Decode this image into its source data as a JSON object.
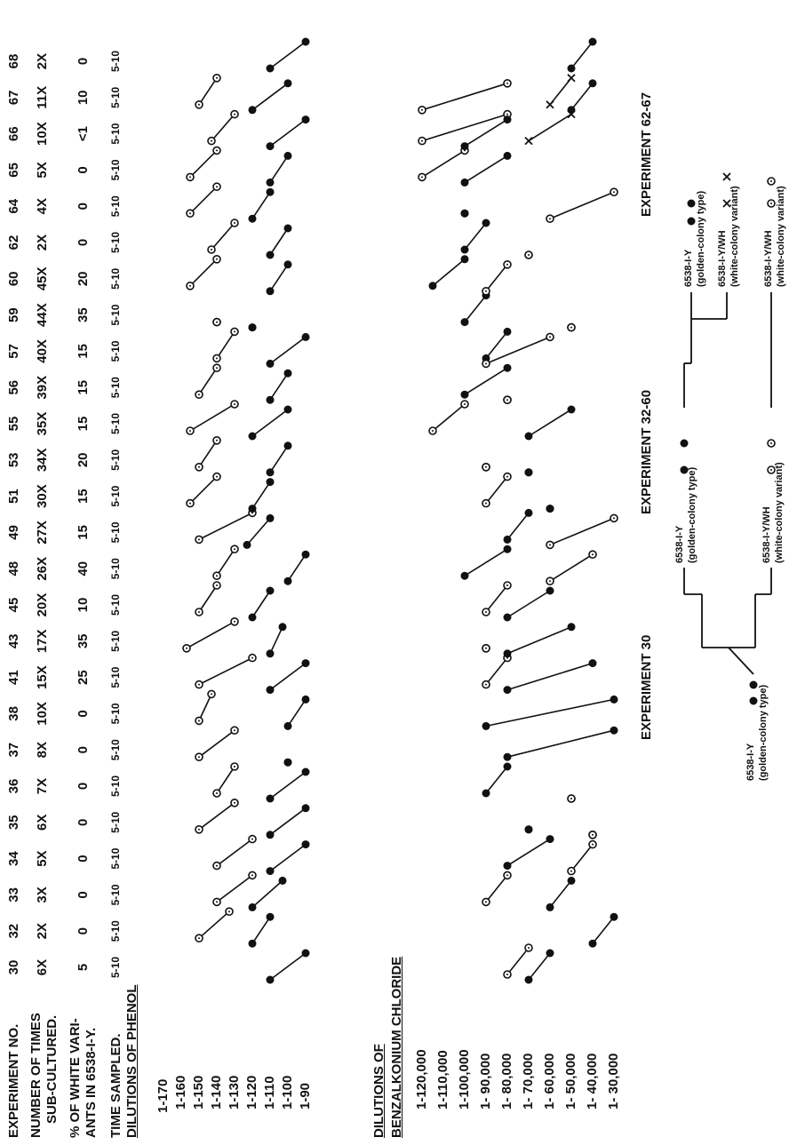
{
  "chart_data": {
    "type": "line",
    "header_labels": {
      "experiment": "EXPERIMENT NO.",
      "subcultured_1": "NUMBER OF TIMES",
      "subcultured_2": "SUB-CULTURED.",
      "variants_1": "% OF WHITE VARI-",
      "variants_2": "ANTS IN 6538-I-Y.",
      "time": "TIME SAMPLED.",
      "phenol": "DILUTIONS OF PHENOL",
      "bc_1": "DILUTIONS OF",
      "bc_2": "BENZALKONIUM CHLORIDE"
    },
    "experiments": [
      "30",
      "32",
      "33",
      "34",
      "35",
      "36",
      "37",
      "38",
      "41",
      "43",
      "45",
      "48",
      "49",
      "51",
      "53",
      "55",
      "56",
      "57",
      "59",
      "60",
      "62",
      "64",
      "65",
      "66",
      "67",
      "68"
    ],
    "times_subcultured": [
      "6X",
      "2X",
      "3X",
      "5X",
      "6X",
      "7X",
      "8X",
      "10X",
      "15X",
      "17X",
      "20X",
      "26X",
      "27X",
      "30X",
      "34X",
      "35X",
      "39X",
      "40X",
      "44X",
      "45X",
      "2X",
      "4X",
      "5X",
      "10X",
      "11X",
      "2X"
    ],
    "pct_white_variants": [
      "5",
      "0",
      "0",
      "0",
      "0",
      "0",
      "0",
      "0",
      "25",
      "35",
      "10",
      "40",
      "15",
      "15",
      "20",
      "15",
      "15",
      "15",
      "35",
      "20",
      "0",
      "0",
      "0",
      "<1",
      "10",
      "0"
    ],
    "time_sampled": [
      "5-10",
      "5-10",
      "5-10",
      "5-10",
      "5-10",
      "5-10",
      "5-10",
      "5-10",
      "5-10",
      "5-10",
      "5-10",
      "5-10",
      "5-10",
      "5-10",
      "5-10",
      "5-10",
      "5-10",
      "5-10",
      "5-10",
      "5-10",
      "5-10",
      "5-10",
      "5-10",
      "5-10",
      "5-10",
      "5-10"
    ],
    "phenol_ticks": [
      "1-170",
      "1-160",
      "1-150",
      "1-140",
      "1-130",
      "1-120",
      "1-110",
      "1-100",
      "1-90"
    ],
    "bc_ticks": [
      "1-120,000",
      "1-110,000",
      "1-100,000",
      "1- 90,000",
      "1- 80,000",
      "1- 70,000",
      "1- 60,000",
      "1- 50,000",
      "1- 40,000",
      "1- 30,000"
    ],
    "phenol_segments": [
      {
        "exp": "30",
        "f": "filled",
        "a": 110,
        "b": 90
      },
      {
        "exp": "32",
        "f": "open",
        "a": 150,
        "b": 133
      },
      {
        "exp": "32",
        "f": "filled",
        "a": 120,
        "b": 110
      },
      {
        "exp": "33",
        "f": "open",
        "a": 140,
        "b": 120
      },
      {
        "exp": "33",
        "f": "filled",
        "a": 120,
        "b": 103
      },
      {
        "exp": "34",
        "f": "open",
        "a": 140,
        "b": 120
      },
      {
        "exp": "34",
        "f": "filled",
        "a": 110,
        "b": 90
      },
      {
        "exp": "35",
        "f": "open",
        "a": 150,
        "b": 130
      },
      {
        "exp": "35",
        "f": "filled",
        "a": 110,
        "b": 90
      },
      {
        "exp": "36",
        "f": "open",
        "a": 140,
        "b": 130
      },
      {
        "exp": "36",
        "f": "filled",
        "a": 110,
        "b": 90
      },
      {
        "exp": "37",
        "f": "open",
        "a": 150,
        "b": 130
      },
      {
        "exp": "37",
        "f": "filled",
        "a": 100,
        "b": 100
      },
      {
        "exp": "38",
        "f": "open",
        "a": 150,
        "b": 143
      },
      {
        "exp": "38",
        "f": "filled",
        "a": 100,
        "b": 90
      },
      {
        "exp": "41",
        "f": "open",
        "a": 150,
        "b": 120
      },
      {
        "exp": "41",
        "f": "filled",
        "a": 110,
        "b": 90
      },
      {
        "exp": "43",
        "f": "open",
        "a": 157,
        "b": 130
      },
      {
        "exp": "43",
        "f": "filled",
        "a": 110,
        "b": 103
      },
      {
        "exp": "45",
        "f": "open",
        "a": 150,
        "b": 140
      },
      {
        "exp": "45",
        "f": "filled",
        "a": 120,
        "b": 110
      },
      {
        "exp": "48",
        "f": "open",
        "a": 140,
        "b": 130
      },
      {
        "exp": "48",
        "f": "filled",
        "a": 100,
        "b": 90
      },
      {
        "exp": "49",
        "f": "open",
        "a": 150,
        "b": 120
      },
      {
        "exp": "49",
        "f": "filled",
        "a": 123,
        "b": 110
      },
      {
        "exp": "51",
        "f": "open",
        "a": 155,
        "b": 140
      },
      {
        "exp": "51",
        "f": "filled",
        "a": 120,
        "b": 110
      },
      {
        "exp": "53",
        "f": "open",
        "a": 150,
        "b": 140
      },
      {
        "exp": "53",
        "f": "filled",
        "a": 110,
        "b": 100
      },
      {
        "exp": "55",
        "f": "open",
        "a": 155,
        "b": 130
      },
      {
        "exp": "55",
        "f": "filled",
        "a": 120,
        "b": 100
      },
      {
        "exp": "56",
        "f": "open",
        "a": 150,
        "b": 140
      },
      {
        "exp": "56",
        "f": "filled",
        "a": 110,
        "b": 100
      },
      {
        "exp": "57",
        "f": "open",
        "a": 140,
        "b": 130
      },
      {
        "exp": "57",
        "f": "filled",
        "a": 110,
        "b": 90
      },
      {
        "exp": "59",
        "f": "open",
        "a": 140,
        "b": 140
      },
      {
        "exp": "59",
        "f": "filled",
        "a": 120,
        "b": 120
      },
      {
        "exp": "60",
        "f": "open",
        "a": 155,
        "b": 140
      },
      {
        "exp": "60",
        "f": "filled",
        "a": 110,
        "b": 100
      },
      {
        "exp": "62",
        "f": "open",
        "a": 143,
        "b": 130
      },
      {
        "exp": "62",
        "f": "filled",
        "a": 110,
        "b": 100
      },
      {
        "exp": "64",
        "f": "open",
        "a": 155,
        "b": 140
      },
      {
        "exp": "64",
        "f": "filled",
        "a": 120,
        "b": 110
      },
      {
        "exp": "65",
        "f": "open",
        "a": 155,
        "b": 140
      },
      {
        "exp": "65",
        "f": "filled",
        "a": 110,
        "b": 100
      },
      {
        "exp": "66",
        "f": "open",
        "a": 143,
        "b": 130
      },
      {
        "exp": "66",
        "f": "filled",
        "a": 110,
        "b": 90
      },
      {
        "exp": "67",
        "f": "open",
        "a": 150,
        "b": 140
      },
      {
        "exp": "67",
        "f": "filled",
        "a": 120,
        "b": 100
      },
      {
        "exp": "68",
        "f": "filled",
        "a": 110,
        "b": 90
      }
    ],
    "bc_segments": [
      {
        "exp": "30",
        "f": "filled",
        "a": 70000,
        "b": 60000
      },
      {
        "exp": "30",
        "f": "open",
        "a": 80000,
        "b": 70000
      },
      {
        "exp": "32",
        "f": "filled",
        "a": 40000,
        "b": 30000
      },
      {
        "exp": "33",
        "f": "open",
        "a": 90000,
        "b": 80000
      },
      {
        "exp": "33",
        "f": "filled",
        "a": 60000,
        "b": 50000
      },
      {
        "exp": "34",
        "f": "filled",
        "a": 80000,
        "b": 60000
      },
      {
        "exp": "34",
        "f": "open",
        "a": 50000,
        "b": 40000
      },
      {
        "exp": "35",
        "f": "filled",
        "a": 70000,
        "b": 70000
      },
      {
        "exp": "35",
        "f": "open",
        "a": 40000,
        "b": 40000
      },
      {
        "exp": "36",
        "f": "filled",
        "a": 90000,
        "b": 80000
      },
      {
        "exp": "36",
        "f": "open",
        "a": 50000,
        "b": 50000
      },
      {
        "exp": "37",
        "f": "filled",
        "a": 80000,
        "b": 30000
      },
      {
        "exp": "38",
        "f": "filled",
        "a": 90000,
        "b": 30000
      },
      {
        "exp": "41",
        "f": "open",
        "a": 90000,
        "b": 80000
      },
      {
        "exp": "41",
        "f": "filled",
        "a": 80000,
        "b": 40000
      },
      {
        "exp": "43",
        "f": "open",
        "a": 90000,
        "b": 90000
      },
      {
        "exp": "43",
        "f": "filled",
        "a": 80000,
        "b": 50000
      },
      {
        "exp": "45",
        "f": "open",
        "a": 90000,
        "b": 80000
      },
      {
        "exp": "45",
        "f": "filled",
        "a": 80000,
        "b": 60000
      },
      {
        "exp": "48",
        "f": "filled",
        "a": 100000,
        "b": 80000
      },
      {
        "exp": "48",
        "f": "open",
        "a": 60000,
        "b": 40000
      },
      {
        "exp": "49",
        "f": "filled",
        "a": 80000,
        "b": 70000
      },
      {
        "exp": "49",
        "f": "open",
        "a": 60000,
        "b": 30000
      },
      {
        "exp": "51",
        "f": "open",
        "a": 90000,
        "b": 80000
      },
      {
        "exp": "51",
        "f": "filled",
        "a": 60000,
        "b": 60000
      },
      {
        "exp": "53",
        "f": "open",
        "a": 90000,
        "b": 90000
      },
      {
        "exp": "53",
        "f": "filled",
        "a": 70000,
        "b": 70000
      },
      {
        "exp": "55",
        "f": "open",
        "a": 115000,
        "b": 100000
      },
      {
        "exp": "55",
        "f": "filled",
        "a": 70000,
        "b": 50000
      },
      {
        "exp": "56",
        "f": "filled",
        "a": 100000,
        "b": 80000
      },
      {
        "exp": "56",
        "f": "open",
        "a": 80000,
        "b": 80000
      },
      {
        "exp": "57",
        "f": "filled",
        "a": 90000,
        "b": 80000
      },
      {
        "exp": "57",
        "f": "open",
        "a": 90000,
        "b": 60000
      },
      {
        "exp": "59",
        "f": "filled",
        "a": 100000,
        "b": 90000
      },
      {
        "exp": "59",
        "f": "open",
        "a": 50000,
        "b": 50000
      },
      {
        "exp": "60",
        "f": "filled",
        "a": 115000,
        "b": 100000
      },
      {
        "exp": "60",
        "f": "open",
        "a": 90000,
        "b": 80000
      },
      {
        "exp": "62",
        "f": "filled",
        "a": 100000,
        "b": 90000
      },
      {
        "exp": "62",
        "f": "open",
        "a": 70000,
        "b": 70000
      },
      {
        "exp": "64",
        "f": "filled",
        "a": 100000,
        "b": 100000
      },
      {
        "exp": "64",
        "f": "open",
        "a": 60000,
        "b": 30000
      },
      {
        "exp": "65",
        "f": "open",
        "a": 120000,
        "b": 100000
      },
      {
        "exp": "65",
        "f": "filled",
        "a": 100000,
        "b": 80000
      },
      {
        "exp": "66",
        "f": "open",
        "a": 120000,
        "b": 80000
      },
      {
        "exp": "66",
        "f": "filled",
        "a": 100000,
        "b": 80000
      },
      {
        "exp": "66",
        "f": "cross",
        "a": 70000,
        "b": 50000
      },
      {
        "exp": "67",
        "f": "open",
        "a": 120000,
        "b": 80000
      },
      {
        "exp": "67",
        "f": "cross",
        "a": 60000,
        "b": 50000
      },
      {
        "exp": "67",
        "f": "filled",
        "a": 50000,
        "b": 40000
      },
      {
        "exp": "68",
        "f": "filled",
        "a": 50000,
        "b": 40000
      }
    ],
    "legend": {
      "exp30_title": "EXPERIMENT 30",
      "exp32_title": "EXPERIMENT 32-60",
      "exp62_title": "EXPERIMENT 62-67",
      "parent": "6538-I-Y",
      "parent_note": "(golden-colony type)",
      "golden": "6538-I-Y",
      "golden_note": "(golden-colony type)",
      "white": "6538-I-Y/WH",
      "white_note": "(white-colony variant)",
      "g4": "6538-I-Y",
      "g4_note": "(golden-colony type)",
      "g4wh": "6538-I-Y/WH",
      "g4wh_note": "(white-colony variant)",
      "wh4": "6538-I-Y/WH",
      "wh4_note": "(white-colony variant)"
    }
  }
}
